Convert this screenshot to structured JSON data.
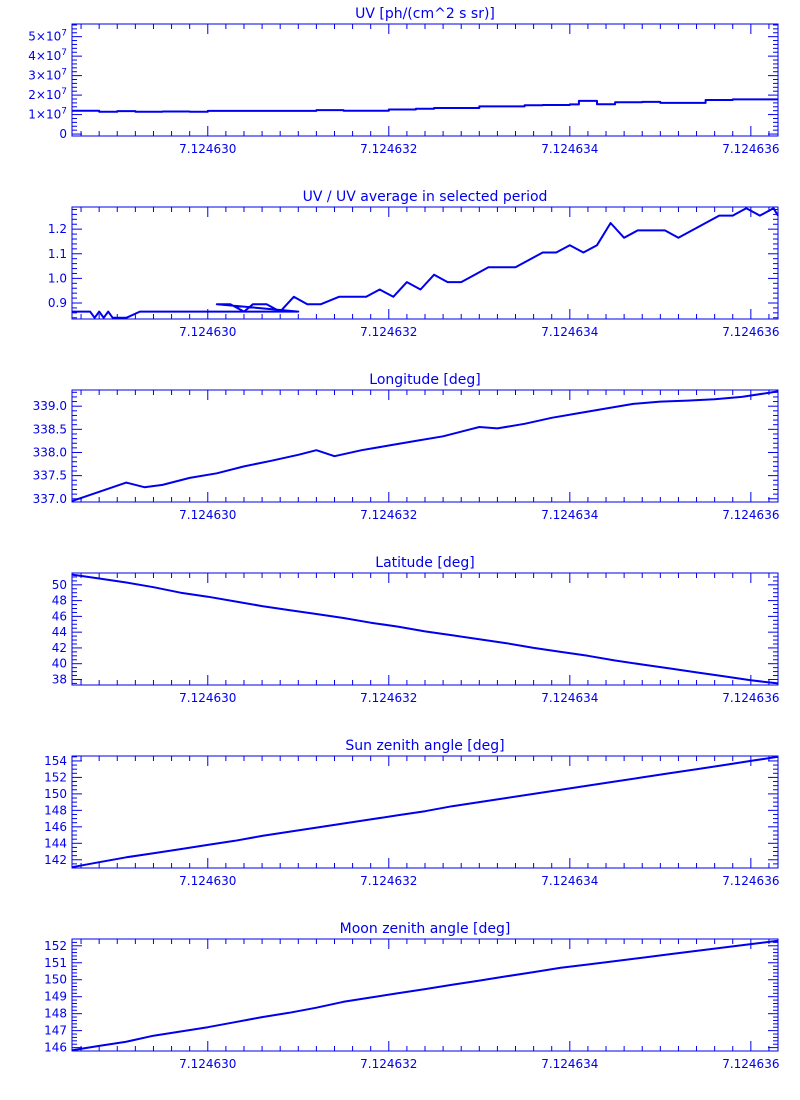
{
  "colors": {
    "line": "#0000ee",
    "background": "#ffffff"
  },
  "shared_x": {
    "range": [
      7.1246285,
      7.1246363
    ],
    "tick_values": [
      7.12463,
      7.124632,
      7.124634,
      7.124636
    ],
    "tick_labels": [
      "7.124630",
      "7.124632",
      "7.124634",
      "7.124636"
    ],
    "minor_per_major": 10
  },
  "chart_data": [
    {
      "type": "line",
      "title": "UV [ph/(cm^2 s sr)]",
      "ylim": [
        -1000000,
        56500000
      ],
      "yticks": [
        {
          "value": 0,
          "label": "0",
          "sup": ""
        },
        {
          "value": 10000000,
          "label": "1×10",
          "sup": "7"
        },
        {
          "value": 20000000,
          "label": "2×10",
          "sup": "7"
        },
        {
          "value": 30000000,
          "label": "3×10",
          "sup": "7"
        },
        {
          "value": 40000000,
          "label": "4×10",
          "sup": "7"
        },
        {
          "value": 50000000,
          "label": "5×10",
          "sup": "7"
        }
      ],
      "minor_per_major": 5,
      "step": true,
      "x": [
        7.1246285,
        7.1246288,
        7.124629,
        7.1246292,
        7.1246295,
        7.1246298,
        7.12463,
        7.1246305,
        7.124631,
        7.1246312,
        7.1246315,
        7.124632,
        7.1246323,
        7.1246325,
        7.124633,
        7.1246335,
        7.1246337,
        7.124634,
        7.1246341,
        7.1246343,
        7.1246345,
        7.1246348,
        7.124635,
        7.1246352,
        7.1246355,
        7.1246358,
        7.124636,
        7.1246363
      ],
      "y": [
        12000000,
        11500000,
        11800000,
        11400000,
        11600000,
        11400000,
        11900000,
        11900000,
        11900000,
        12300000,
        12000000,
        12600000,
        13000000,
        13400000,
        14200000,
        14800000,
        14900000,
        15200000,
        17000000,
        15300000,
        16300000,
        16500000,
        16000000,
        16000000,
        17500000,
        17800000,
        17800000,
        17800000
      ]
    },
    {
      "type": "line",
      "title": "UV / UV average in selected period",
      "ylim": [
        0.835,
        1.29
      ],
      "yticks": [
        {
          "value": 0.9,
          "label": "0.9",
          "sup": ""
        },
        {
          "value": 1.0,
          "label": "1.0",
          "sup": ""
        },
        {
          "value": 1.1,
          "label": "1.1",
          "sup": ""
        },
        {
          "value": 1.2,
          "label": "1.2",
          "sup": ""
        }
      ],
      "minor_per_major": 5,
      "step": false,
      "x": [
        7.1246285,
        7.1246286,
        7.1246287,
        7.12462875,
        7.1246288,
        7.12462885,
        7.1246289,
        7.12462895,
        7.124629,
        7.1246291,
        7.12462925,
        7.1246293,
        7.12462935,
        7.124631,
        7.1246301,
        7.12463025,
        7.1246304,
        7.1246305,
        7.12463065,
        7.1246308,
        7.12463095,
        7.1246311,
        7.12463125,
        7.12463145,
        7.1246316,
        7.12463175,
        7.1246319,
        7.12463205,
        7.1246322,
        7.12463235,
        7.1246325,
        7.12463265,
        7.1246328,
        7.12463295,
        7.1246331,
        7.12463325,
        7.1246334,
        7.12463355,
        7.1246337,
        7.12463385,
        7.124634,
        7.12463415,
        7.1246343,
        7.12463445,
        7.1246346,
        7.12463475,
        7.1246349,
        7.12463505,
        7.1246352,
        7.12463535,
        7.1246355,
        7.12463565,
        7.1246358,
        7.12463595,
        7.1246361,
        7.12463625,
        7.1246363
      ],
      "y": [
        0.865,
        0.865,
        0.865,
        0.84,
        0.865,
        0.84,
        0.865,
        0.84,
        0.84,
        0.84,
        0.865,
        0.865,
        0.865,
        0.865,
        0.895,
        0.895,
        0.865,
        0.895,
        0.895,
        0.865,
        0.925,
        0.895,
        0.895,
        0.925,
        0.925,
        0.925,
        0.955,
        0.925,
        0.985,
        0.955,
        1.015,
        0.985,
        0.985,
        1.015,
        1.045,
        1.045,
        1.045,
        1.075,
        1.105,
        1.105,
        1.135,
        1.105,
        1.135,
        1.225,
        1.165,
        1.195,
        1.195,
        1.195,
        1.165,
        1.195,
        1.225,
        1.255,
        1.255,
        1.285,
        1.255,
        1.285,
        1.255
      ]
    },
    {
      "type": "line",
      "title": "Longitude [deg]",
      "ylim": [
        336.93,
        339.35
      ],
      "yticks": [
        {
          "value": 337.0,
          "label": "337.0",
          "sup": ""
        },
        {
          "value": 337.5,
          "label": "337.5",
          "sup": ""
        },
        {
          "value": 338.0,
          "label": "338.0",
          "sup": ""
        },
        {
          "value": 338.5,
          "label": "338.5",
          "sup": ""
        },
        {
          "value": 339.0,
          "label": "339.0",
          "sup": ""
        }
      ],
      "minor_per_major": 5,
      "step": false,
      "x": [
        7.1246285,
        7.1246288,
        7.1246291,
        7.1246293,
        7.1246295,
        7.1246298,
        7.1246301,
        7.1246304,
        7.1246307,
        7.124631,
        7.1246312,
        7.1246314,
        7.1246317,
        7.124632,
        7.1246323,
        7.1246326,
        7.1246329,
        7.124633,
        7.1246332,
        7.1246335,
        7.1246338,
        7.1246341,
        7.1246344,
        7.1246347,
        7.124635,
        7.1246353,
        7.1246356,
        7.1246359,
        7.1246363
      ],
      "y": [
        336.95,
        337.15,
        337.35,
        337.25,
        337.3,
        337.45,
        337.55,
        337.7,
        337.82,
        337.95,
        338.05,
        337.92,
        338.05,
        338.15,
        338.25,
        338.35,
        338.5,
        338.55,
        338.52,
        338.62,
        338.75,
        338.85,
        338.95,
        339.05,
        339.1,
        339.12,
        339.15,
        339.2,
        339.32
      ]
    },
    {
      "type": "line",
      "title": "Latitude [deg]",
      "ylim": [
        37.3,
        51.5
      ],
      "yticks": [
        {
          "value": 38,
          "label": "38",
          "sup": ""
        },
        {
          "value": 40,
          "label": "40",
          "sup": ""
        },
        {
          "value": 42,
          "label": "42",
          "sup": ""
        },
        {
          "value": 44,
          "label": "44",
          "sup": ""
        },
        {
          "value": 46,
          "label": "46",
          "sup": ""
        },
        {
          "value": 48,
          "label": "48",
          "sup": ""
        },
        {
          "value": 50,
          "label": "50",
          "sup": ""
        }
      ],
      "minor_per_major": 4,
      "step": false,
      "x": [
        7.1246285,
        7.1246288,
        7.1246291,
        7.1246294,
        7.1246297,
        7.12463,
        7.1246303,
        7.1246306,
        7.1246309,
        7.1246312,
        7.1246315,
        7.1246318,
        7.1246321,
        7.1246324,
        7.1246327,
        7.124633,
        7.1246333,
        7.1246336,
        7.1246339,
        7.1246342,
        7.1246345,
        7.1246348,
        7.1246351,
        7.1246354,
        7.1246357,
        7.124636,
        7.1246363
      ],
      "y": [
        51.3,
        50.8,
        50.3,
        49.7,
        49.0,
        48.5,
        47.9,
        47.3,
        46.8,
        46.3,
        45.8,
        45.2,
        44.7,
        44.1,
        43.6,
        43.1,
        42.6,
        42.0,
        41.5,
        41.0,
        40.4,
        39.9,
        39.4,
        38.9,
        38.4,
        37.9,
        37.5
      ]
    },
    {
      "type": "line",
      "title": "Sun zenith angle [deg]",
      "ylim": [
        141.0,
        154.6
      ],
      "yticks": [
        {
          "value": 142,
          "label": "142",
          "sup": ""
        },
        {
          "value": 144,
          "label": "144",
          "sup": ""
        },
        {
          "value": 146,
          "label": "146",
          "sup": ""
        },
        {
          "value": 148,
          "label": "148",
          "sup": ""
        },
        {
          "value": 150,
          "label": "150",
          "sup": ""
        },
        {
          "value": 152,
          "label": "152",
          "sup": ""
        },
        {
          "value": 154,
          "label": "154",
          "sup": ""
        }
      ],
      "minor_per_major": 4,
      "step": false,
      "x": [
        7.1246285,
        7.1246288,
        7.1246291,
        7.1246294,
        7.1246297,
        7.12463,
        7.1246303,
        7.1246306,
        7.1246309,
        7.1246312,
        7.1246315,
        7.1246318,
        7.1246321,
        7.1246324,
        7.1246327,
        7.124633,
        7.1246333,
        7.1246336,
        7.1246339,
        7.1246342,
        7.1246345,
        7.1246348,
        7.1246351,
        7.1246354,
        7.1246357,
        7.124636,
        7.1246363
      ],
      "y": [
        141.1,
        141.7,
        142.3,
        142.8,
        143.3,
        143.8,
        144.3,
        144.9,
        145.4,
        145.9,
        146.4,
        146.9,
        147.4,
        147.9,
        148.5,
        149.0,
        149.5,
        150.0,
        150.5,
        151.0,
        151.5,
        152.0,
        152.5,
        153.0,
        153.5,
        154.0,
        154.5
      ]
    },
    {
      "type": "line",
      "title": "Moon zenith angle [deg]",
      "ylim": [
        145.8,
        152.4
      ],
      "yticks": [
        {
          "value": 146,
          "label": "146",
          "sup": ""
        },
        {
          "value": 147,
          "label": "147",
          "sup": ""
        },
        {
          "value": 148,
          "label": "148",
          "sup": ""
        },
        {
          "value": 149,
          "label": "149",
          "sup": ""
        },
        {
          "value": 150,
          "label": "150",
          "sup": ""
        },
        {
          "value": 151,
          "label": "151",
          "sup": ""
        },
        {
          "value": 152,
          "label": "152",
          "sup": ""
        }
      ],
      "minor_per_major": 5,
      "step": false,
      "x": [
        7.1246285,
        7.1246288,
        7.1246291,
        7.1246294,
        7.1246297,
        7.12463,
        7.1246303,
        7.1246306,
        7.1246309,
        7.1246312,
        7.1246315,
        7.1246318,
        7.1246321,
        7.1246324,
        7.1246327,
        7.124633,
        7.1246333,
        7.1246336,
        7.1246339,
        7.1246342,
        7.1246345,
        7.1246348,
        7.1246351,
        7.1246354,
        7.1246357,
        7.124636,
        7.1246363
      ],
      "y": [
        145.85,
        146.1,
        146.35,
        146.7,
        146.95,
        147.2,
        147.5,
        147.8,
        148.05,
        148.35,
        148.7,
        148.95,
        149.2,
        149.45,
        149.7,
        149.95,
        150.2,
        150.45,
        150.7,
        150.9,
        151.1,
        151.3,
        151.5,
        151.7,
        151.9,
        152.1,
        152.3
      ]
    }
  ]
}
